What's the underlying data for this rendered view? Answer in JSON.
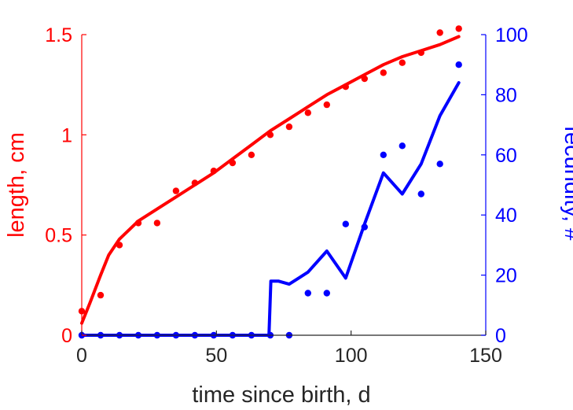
{
  "chart_data": {
    "type": "scatter",
    "xlabel": "time since birth, d",
    "ylabel_left": "length, cm",
    "ylabel_right": "fecundity, #",
    "xlim": [
      0,
      150
    ],
    "ylim_left": [
      0,
      1.5
    ],
    "ylim_right": [
      0,
      100
    ],
    "x_ticks": [
      "0",
      "50",
      "100",
      "150"
    ],
    "y_left_ticks": [
      "0",
      "0.5",
      "1",
      "1.5"
    ],
    "y_right_ticks": [
      "0",
      "20",
      "40",
      "60",
      "80",
      "100"
    ],
    "colors": {
      "length": "#ff0000",
      "fecundity": "#0000ff",
      "axis_x": "#262626"
    },
    "series": [
      {
        "kind": "data",
        "axis": "left",
        "color": "#ff0000",
        "x": [
          0,
          7,
          14,
          21,
          28,
          35,
          42,
          49,
          56,
          63,
          70,
          77,
          84,
          91,
          98,
          105,
          112,
          119,
          126,
          133,
          140
        ],
        "y": [
          0.12,
          0.2,
          0.45,
          0.56,
          0.56,
          0.72,
          0.76,
          0.82,
          0.86,
          0.9,
          1.0,
          1.04,
          1.11,
          1.15,
          1.24,
          1.28,
          1.31,
          1.36,
          1.41,
          1.51,
          1.53
        ]
      },
      {
        "kind": "fit",
        "axis": "left",
        "color": "#ff0000",
        "x": [
          0,
          3,
          7,
          10,
          14,
          21,
          28,
          35,
          42,
          49,
          56,
          63,
          70,
          77,
          84,
          91,
          98,
          105,
          112,
          119,
          126,
          133,
          140
        ],
        "y": [
          0.06,
          0.16,
          0.3,
          0.4,
          0.48,
          0.57,
          0.63,
          0.69,
          0.75,
          0.81,
          0.88,
          0.95,
          1.02,
          1.08,
          1.14,
          1.2,
          1.25,
          1.3,
          1.35,
          1.39,
          1.42,
          1.45,
          1.49
        ]
      },
      {
        "kind": "data",
        "axis": "right",
        "color": "#0000ff",
        "x": [
          0,
          7,
          14,
          21,
          28,
          35,
          42,
          49,
          56,
          63,
          70,
          77,
          84,
          91,
          98,
          105,
          112,
          119,
          126,
          133,
          140
        ],
        "y": [
          0,
          0,
          0,
          0,
          0,
          0,
          0,
          0,
          0,
          0,
          0,
          0,
          14,
          14,
          37,
          36,
          60,
          63,
          47,
          57,
          90
        ]
      },
      {
        "kind": "fit",
        "axis": "right",
        "color": "#0000ff",
        "x": [
          0,
          69.5,
          70.2,
          73,
          77,
          84,
          91,
          98,
          105,
          112,
          119,
          126,
          133,
          140
        ],
        "y": [
          0,
          0,
          18,
          18,
          17,
          21,
          28,
          19,
          37,
          54,
          47,
          57,
          73,
          84
        ]
      }
    ]
  }
}
